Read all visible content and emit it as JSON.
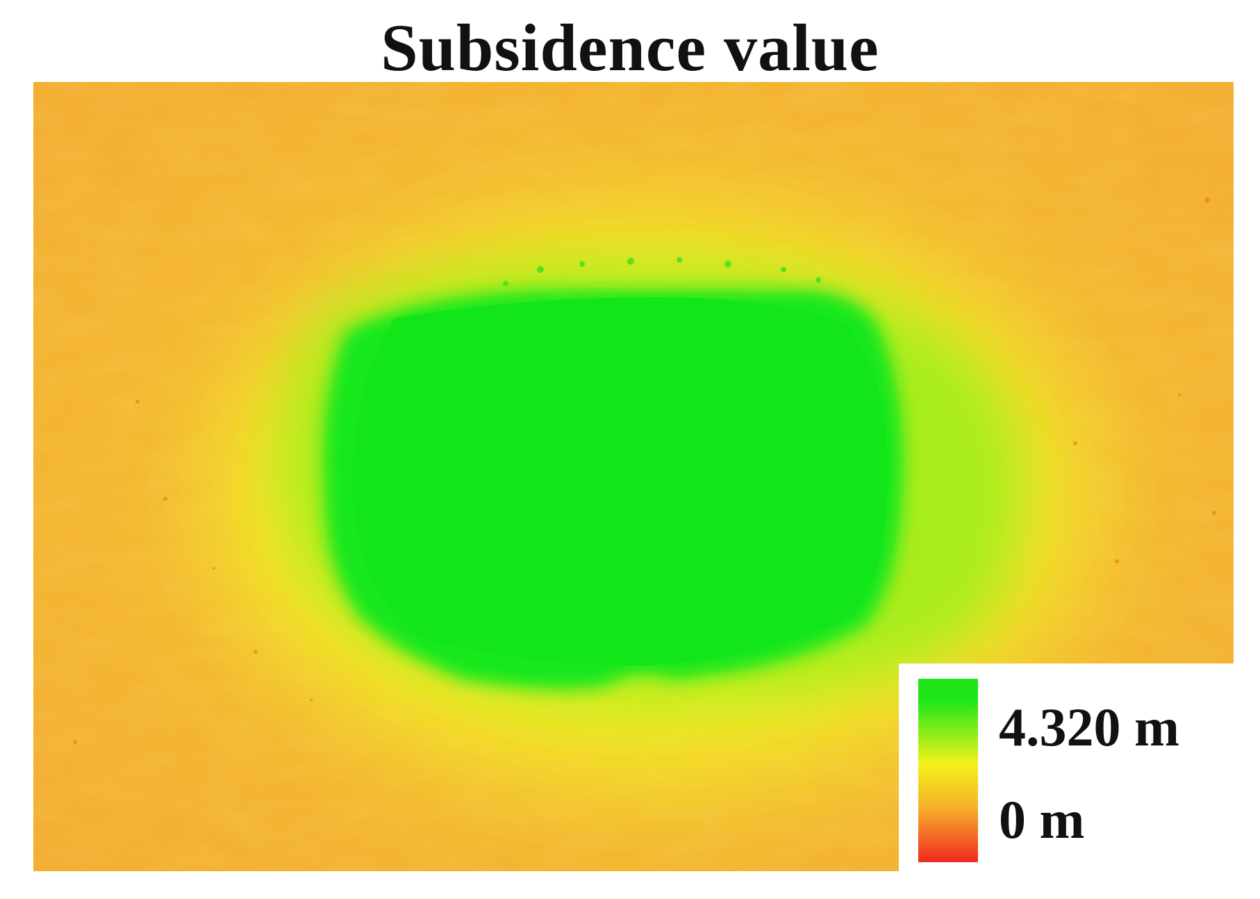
{
  "title": "Subsidence value",
  "legend": {
    "max_label": "4.320 m",
    "min_label": "0 m",
    "colors": {
      "max": "#1fe61a",
      "mid": "#f2f21a",
      "low": "#f7b12a",
      "min": "#ef2a1f"
    }
  },
  "map": {
    "background_color": "#f4b633",
    "subsidence_basin_color": "#16e81a",
    "transition_color": "#dfee22"
  }
}
